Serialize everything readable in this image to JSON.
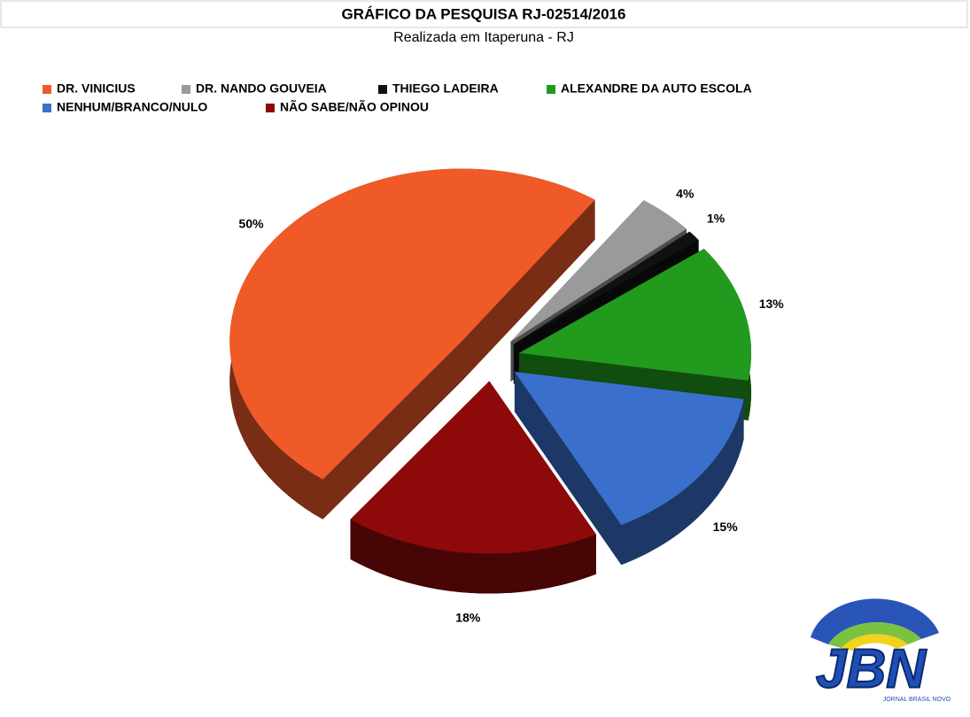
{
  "chart_data": {
    "type": "pie",
    "title": "GRÁFICO DA PESQUISA RJ-02514/2016",
    "subtitle": "Realizada em Itaperuna - RJ",
    "categories": [
      "DR. VINICIUS",
      "DR. NANDO GOUVEIA",
      "THIEGO LADEIRA",
      "ALEXANDRE DA AUTO ESCOLA",
      "NENHUM/BRANCO/NULO",
      "NÃO SABE/NÃO OPINOU"
    ],
    "values": [
      50,
      4,
      1,
      13,
      15,
      18
    ],
    "value_labels": [
      "50%",
      "4%",
      "1%",
      "13%",
      "15%",
      "18%"
    ],
    "colors": [
      "#f05a28",
      "#9a9a9a",
      "#111111",
      "#219a1e",
      "#3a70cc",
      "#8e0a0a"
    ],
    "legend": "top"
  },
  "logo": {
    "text": "JBN",
    "caption": "JORNAL BRASIL NOVO"
  }
}
